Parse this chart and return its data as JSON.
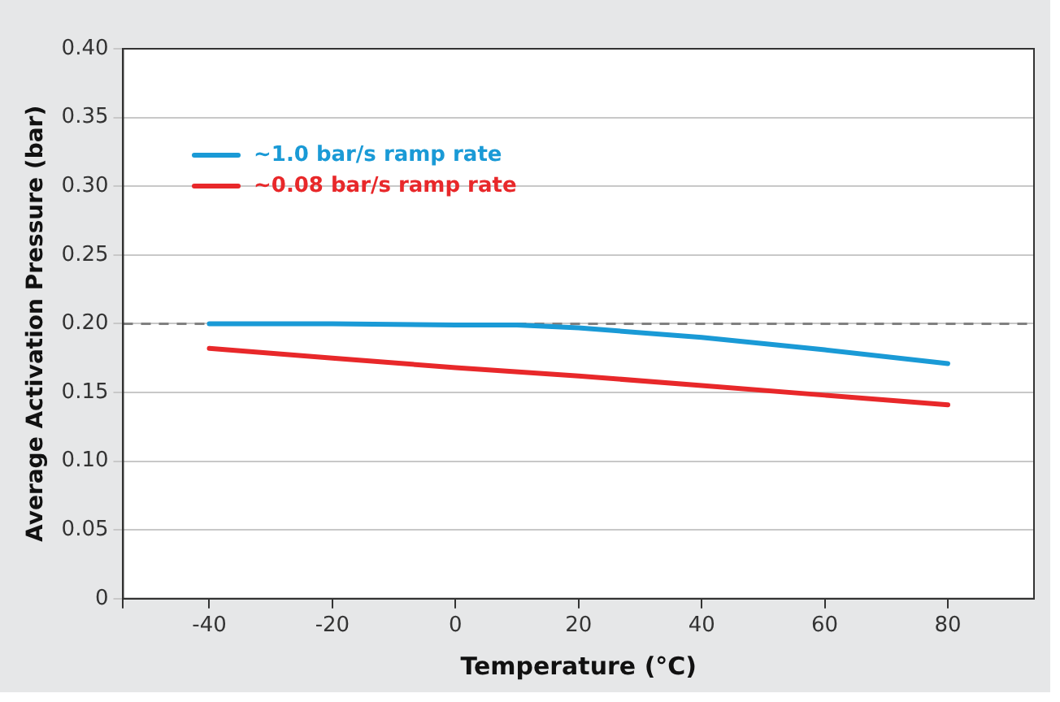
{
  "chart_data": {
    "type": "line",
    "xlabel": "Temperature (°C)",
    "ylabel": "Average Activation Pressure (bar)",
    "xlim": [
      -54,
      94
    ],
    "xticks": [
      {
        "value": -54,
        "label": null
      },
      -40,
      -20,
      0,
      20,
      40,
      60,
      80
    ],
    "ylim": [
      0,
      0.4
    ],
    "yticks": [
      {
        "value": 0,
        "label": "0"
      },
      0.05,
      {
        "value": 0.1,
        "label": "0.10"
      },
      0.15,
      {
        "value": 0.2,
        "label": "0.20"
      },
      0.25,
      {
        "value": 0.3,
        "label": "0.30"
      },
      0.35,
      {
        "value": 0.4,
        "label": "0.40"
      }
    ],
    "grid": "y",
    "legend": "top left",
    "marker": "none",
    "line_style": "solid",
    "ref_lines": [
      {
        "axis": "y",
        "value": 0.2,
        "color": "#808080",
        "line_style": "dashed"
      }
    ],
    "series": [
      {
        "name": "~1.0 bar/s ramp rate",
        "color": "#1a9ad6",
        "x": [
          -40,
          -20,
          0,
          10,
          20,
          40,
          60,
          80
        ],
        "values": [
          0.2,
          0.2,
          0.199,
          0.199,
          0.197,
          0.19,
          0.181,
          0.171
        ]
      },
      {
        "name": "~0.08 bar/s ramp rate",
        "color": "#e8282a",
        "x": [
          -40,
          -20,
          0,
          20,
          40,
          60,
          80
        ],
        "values": [
          0.182,
          0.175,
          0.168,
          0.162,
          0.155,
          0.148,
          0.141
        ]
      }
    ]
  }
}
